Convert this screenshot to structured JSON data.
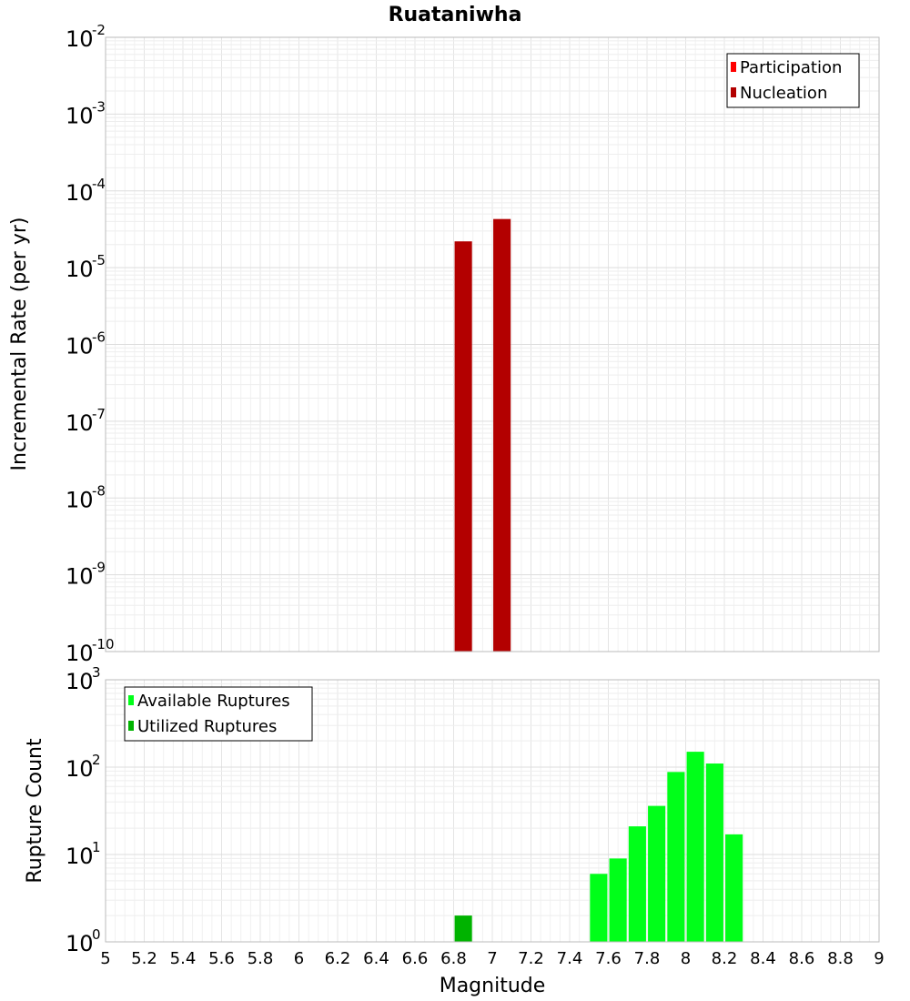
{
  "chart_data": [
    {
      "type": "bar",
      "title": "Ruataniwha",
      "ylabel": "Incremental Rate (per yr)",
      "xlabel": "",
      "xlim": [
        5,
        9
      ],
      "yscale": "log",
      "ylim_exponent": [
        -10,
        -2
      ],
      "grid": true,
      "legend_position": "top-right",
      "bar_width": 0.09,
      "series": [
        {
          "name": "Participation",
          "color": "#ff0000",
          "x": [],
          "values": []
        },
        {
          "name": "Nucleation",
          "color": "#b30000",
          "x": [
            6.85,
            7.05
          ],
          "values": [
            2.2e-05,
            4.3e-05
          ]
        }
      ]
    },
    {
      "type": "bar",
      "title": "",
      "ylabel": "Rupture Count",
      "xlabel": "Magnitude",
      "xlim": [
        5,
        9
      ],
      "xticks": [
        "5",
        "5.2",
        "5.4",
        "5.6",
        "5.8",
        "6",
        "6.2",
        "6.4",
        "6.6",
        "6.8",
        "7",
        "7.2",
        "7.4",
        "7.6",
        "7.8",
        "8",
        "8.2",
        "8.4",
        "8.6",
        "8.8",
        "9"
      ],
      "yscale": "log",
      "ylim_exponent": [
        0,
        3
      ],
      "grid": true,
      "legend_position": "top-left",
      "bar_width": 0.09,
      "series": [
        {
          "name": "Available Ruptures",
          "color": "#00ff19",
          "x": [
            7.55,
            7.65,
            7.75,
            7.85,
            7.95,
            8.05,
            8.15,
            8.25
          ],
          "values": [
            6,
            9,
            21,
            36,
            88,
            150,
            110,
            17
          ]
        },
        {
          "name": "Utilized Ruptures",
          "color": "#00b300",
          "x": [
            6.85,
            7.05
          ],
          "values": [
            2,
            1
          ]
        }
      ]
    }
  ]
}
